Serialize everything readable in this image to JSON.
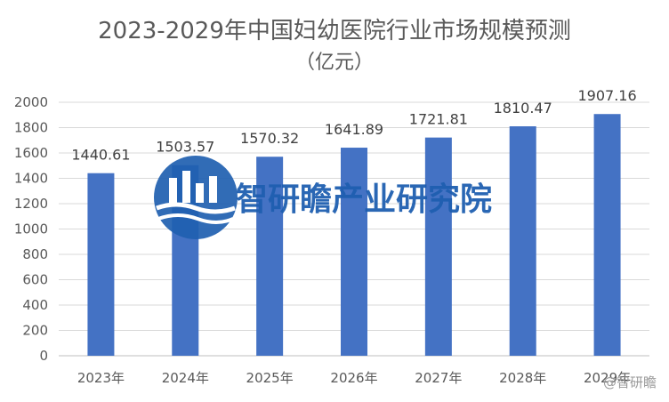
{
  "chart_data": {
    "type": "bar",
    "title": "2023-2029年中国妇幼医院行业市场规模预测",
    "subtitle": "（亿元）",
    "categories": [
      "2023年",
      "2024年",
      "2025年",
      "2026年",
      "2027年",
      "2028年",
      "2029年"
    ],
    "values": [
      1440.61,
      1503.57,
      1570.32,
      1641.89,
      1721.81,
      1810.47,
      1907.16
    ],
    "value_labels": [
      "1440.61",
      "1503.57",
      "1570.32",
      "1641.89",
      "1721.81",
      "1810.47",
      "1907.16"
    ],
    "yticks": [
      0,
      200,
      400,
      600,
      800,
      1000,
      1200,
      1400,
      1600,
      1800,
      2000
    ],
    "ylim": [
      0,
      2000
    ],
    "xlabel": "",
    "ylabel": "",
    "grid": true,
    "bar_color": "#4472c4"
  },
  "watermark": {
    "text": "智研瞻产业研究院",
    "color": "#1f5fb0"
  },
  "corner_watermark": "@智研瞻"
}
